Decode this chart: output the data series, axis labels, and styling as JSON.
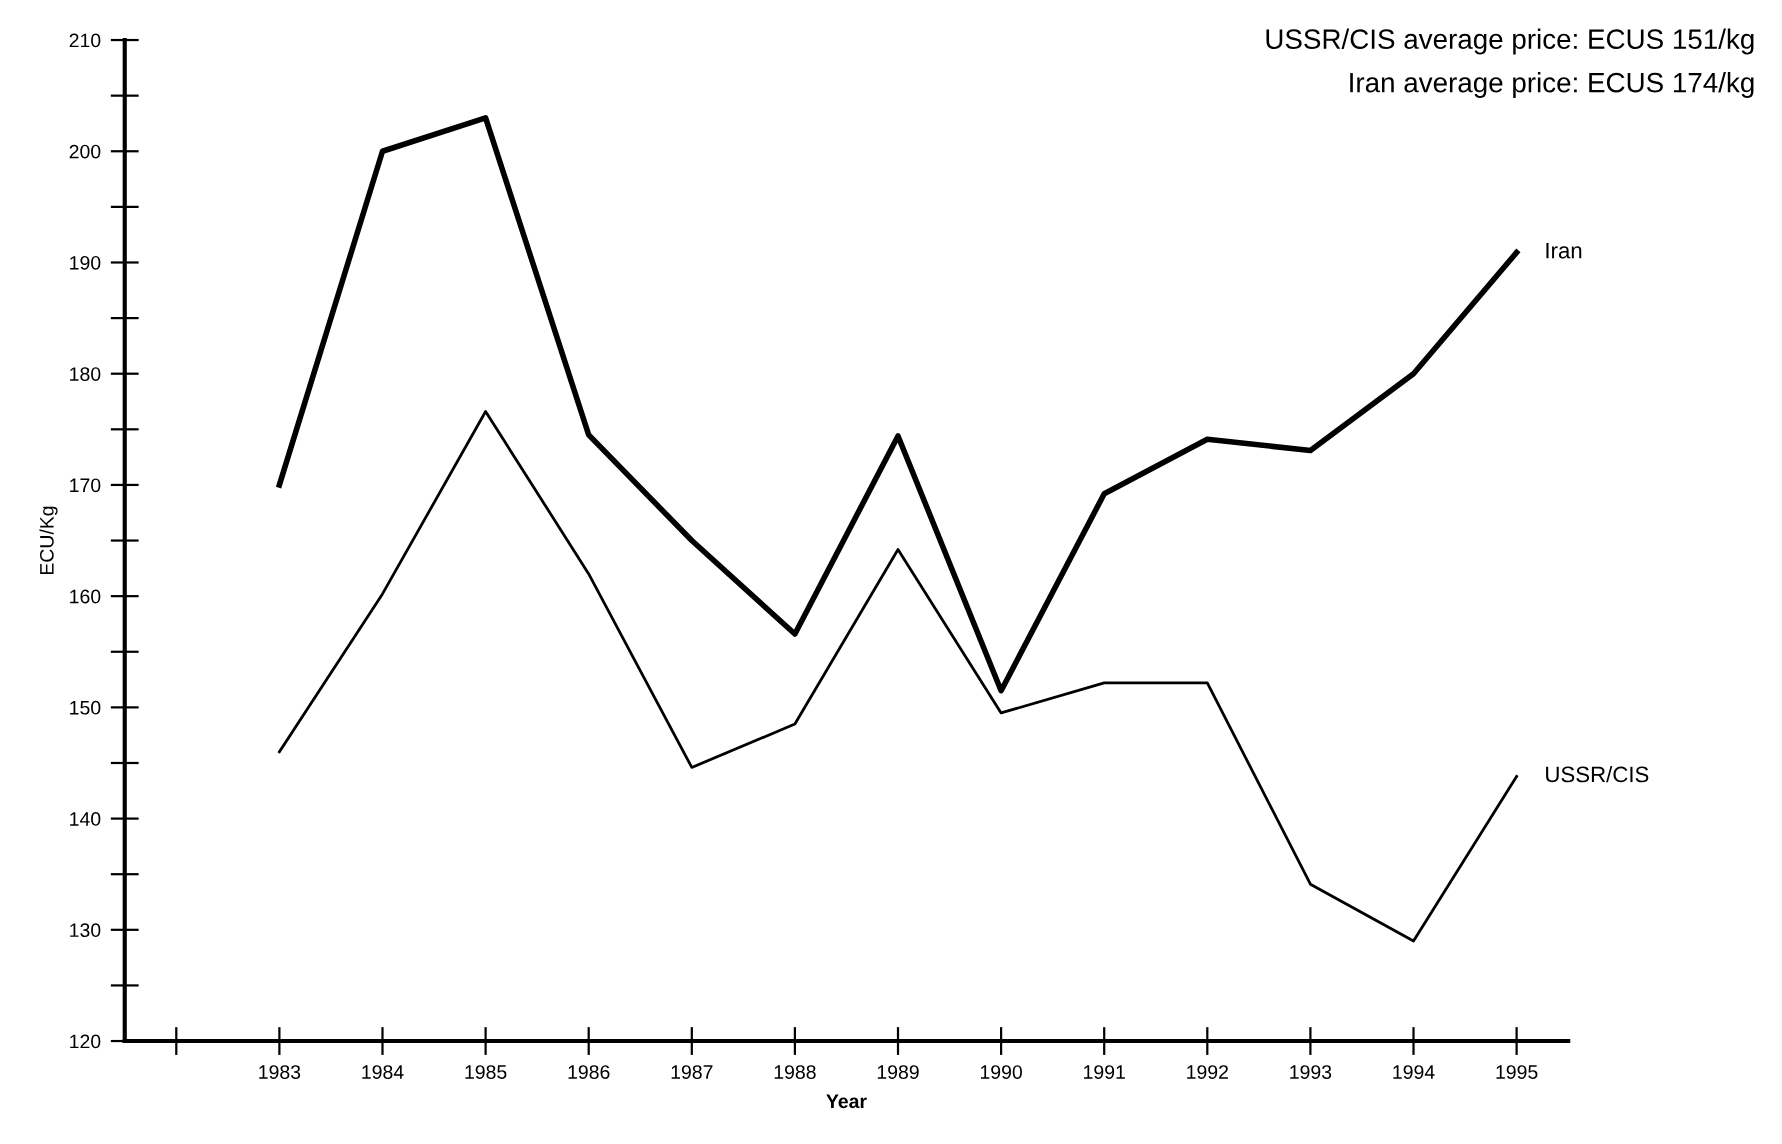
{
  "chart_data": {
    "type": "line",
    "x": [
      1983,
      1984,
      1985,
      1986,
      1987,
      1988,
      1989,
      1990,
      1991,
      1992,
      1993,
      1994,
      1995
    ],
    "series": [
      {
        "name": "Iran",
        "color": "#000000",
        "values": [
          170,
          200,
          203,
          174.5,
          165,
          156.6,
          174.4,
          151.5,
          169.2,
          174.1,
          173.1,
          180,
          190.9
        ]
      },
      {
        "name": "USSR/CIS",
        "color": "#000000",
        "values": [
          146,
          160.2,
          176.6,
          162,
          144.6,
          148.5,
          164.2,
          149.5,
          152.2,
          152.2,
          134.1,
          129,
          143.8
        ]
      }
    ],
    "xlabel": "Year",
    "ylabel": "ECU/Kg",
    "xlim": [
      1981.5,
      1995.5
    ],
    "xticks": [
      {
        "value": 1982,
        "label": null
      },
      1983,
      1984,
      1985,
      1986,
      1987,
      1988,
      1989,
      1990,
      1991,
      1992,
      1993,
      1994,
      1995
    ],
    "ylim": [
      120,
      210
    ],
    "yticks": [
      120,
      {
        "value": 125,
        "label": null
      },
      130,
      {
        "value": 135,
        "label": null
      },
      140,
      {
        "value": 145,
        "label": null
      },
      150,
      {
        "value": 155,
        "label": null
      },
      160,
      {
        "value": 165,
        "label": null
      },
      170,
      {
        "value": 175,
        "label": null
      },
      180,
      {
        "value": 185,
        "label": null
      },
      190,
      {
        "value": 195,
        "label": null
      },
      200,
      {
        "value": 205,
        "label": null
      },
      210
    ],
    "annotations": [
      "USSR/CIS average price: ECUS 151/kg",
      "Iran average price: ECUS 174/kg"
    ],
    "grid": false,
    "legend": false,
    "marker": "none",
    "line_style": "solid"
  }
}
